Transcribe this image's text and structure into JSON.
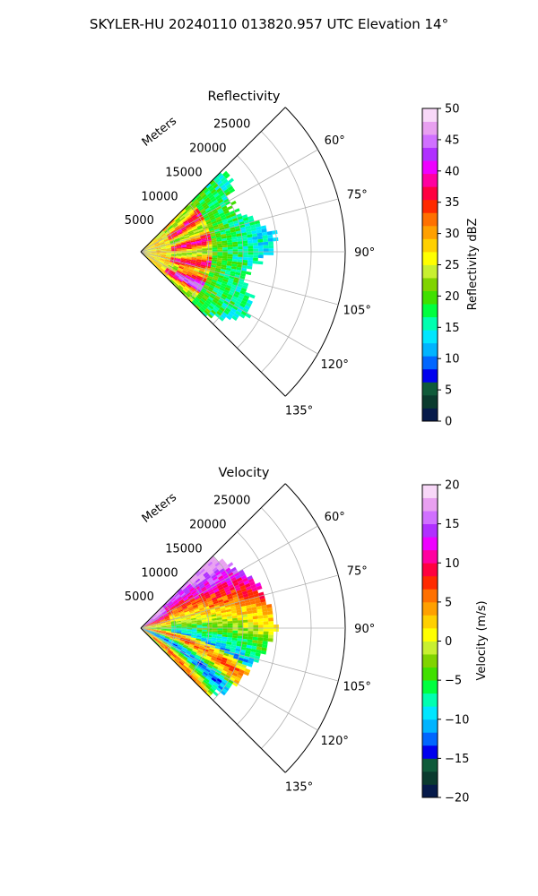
{
  "figure": {
    "title": "SKYLER-HU  20240110  013820.957 UTC Elevation 14°"
  },
  "chart_data": [
    {
      "type": "heatmap",
      "projection": "polar-sector",
      "title": "Reflectivity",
      "range_label": "Meters",
      "range_ticks": [
        5000,
        10000,
        15000,
        20000,
        25000
      ],
      "range_max": 30000,
      "azimuth_ticks": [
        "60°",
        "75°",
        "90°",
        "105°",
        "120°",
        "135°"
      ],
      "azimuth_tick_values": [
        60,
        75,
        90,
        105,
        120,
        135
      ],
      "azimuth_range": [
        45,
        135
      ],
      "grid": true,
      "colorbar": {
        "label": "Reflectivity dBZ",
        "min": 0,
        "max": 50,
        "ticks": [
          0,
          5,
          10,
          15,
          20,
          25,
          30,
          35,
          40,
          45,
          50
        ],
        "tick_labels": [
          "0",
          "5",
          "10",
          "15",
          "20",
          "25",
          "30",
          "35",
          "40",
          "45",
          "50"
        ]
      },
      "pattern": "reflectivity"
    },
    {
      "type": "heatmap",
      "projection": "polar-sector",
      "title": "Velocity",
      "range_label": "Meters",
      "range_ticks": [
        5000,
        10000,
        15000,
        20000,
        25000
      ],
      "range_max": 30000,
      "azimuth_ticks": [
        "60°",
        "75°",
        "90°",
        "105°",
        "120°",
        "135°"
      ],
      "azimuth_tick_values": [
        60,
        75,
        90,
        105,
        120,
        135
      ],
      "azimuth_range": [
        45,
        135
      ],
      "grid": true,
      "colorbar": {
        "label": "Velocity (m/s)",
        "min": -20,
        "max": 20,
        "ticks": [
          -20,
          -15,
          -10,
          -5,
          0,
          5,
          10,
          15,
          20
        ],
        "tick_labels": [
          "−20",
          "−15",
          "−10",
          "−5",
          "0",
          "5",
          "10",
          "15",
          "20"
        ]
      },
      "pattern": "velocity"
    }
  ],
  "colors": {
    "colormap": [
      "#061a4a",
      "#0a3a2e",
      "#0f5a3a",
      "#0000ee",
      "#0066ff",
      "#00b4ff",
      "#00e6ff",
      "#00ffb0",
      "#00ff40",
      "#40e000",
      "#80d400",
      "#c8f030",
      "#ffff00",
      "#ffd000",
      "#ffa000",
      "#ff7000",
      "#ff2a00",
      "#ff0040",
      "#ff00a0",
      "#ee00ff",
      "#b030ff",
      "#d070ff",
      "#e8a0f0",
      "#f8d8f8"
    ]
  }
}
